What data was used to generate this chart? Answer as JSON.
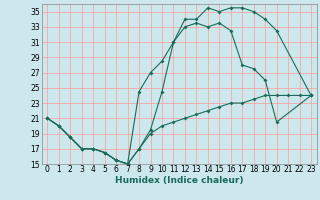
{
  "title": "",
  "xlabel": "Humidex (Indice chaleur)",
  "bg_color": "#cce8ec",
  "grid_color": "#ff9999",
  "line_color": "#1a6b5a",
  "xlim": [
    -0.5,
    23.5
  ],
  "ylim": [
    15,
    36
  ],
  "xticks": [
    0,
    1,
    2,
    3,
    4,
    5,
    6,
    7,
    8,
    9,
    10,
    11,
    12,
    13,
    14,
    15,
    16,
    17,
    18,
    19,
    20,
    21,
    22,
    23
  ],
  "yticks": [
    15,
    17,
    19,
    21,
    23,
    25,
    27,
    29,
    31,
    33,
    35
  ],
  "line1_x": [
    0,
    1,
    2,
    3,
    4,
    5,
    6,
    7,
    8,
    9,
    10,
    11,
    12,
    13,
    14,
    15,
    16,
    17,
    18,
    19,
    20,
    23
  ],
  "line1_y": [
    21,
    20,
    18.5,
    17,
    17,
    16.5,
    15.5,
    15,
    17,
    19.5,
    24.5,
    31,
    34,
    34,
    35.5,
    35,
    35.5,
    35.5,
    35,
    34,
    32.5,
    24
  ],
  "line2_x": [
    0,
    1,
    2,
    3,
    4,
    5,
    6,
    7,
    8,
    9,
    10,
    11,
    12,
    13,
    14,
    15,
    16,
    17,
    18,
    19,
    20,
    23
  ],
  "line2_y": [
    21,
    20,
    18.5,
    17,
    17,
    16.5,
    15.5,
    15,
    24.5,
    27,
    28.5,
    31,
    33,
    33.5,
    33,
    33.5,
    32.5,
    28,
    27.5,
    26,
    20.5,
    24
  ],
  "line3_x": [
    0,
    1,
    2,
    3,
    4,
    5,
    6,
    7,
    8,
    9,
    10,
    11,
    12,
    13,
    14,
    15,
    16,
    17,
    18,
    19,
    20,
    21,
    22,
    23
  ],
  "line3_y": [
    21,
    20,
    18.5,
    17,
    17,
    16.5,
    15.5,
    15,
    17,
    19,
    20,
    20.5,
    21,
    21.5,
    22,
    22.5,
    23,
    23,
    23.5,
    24,
    24,
    24,
    24,
    24
  ],
  "tick_fontsize": 5.5,
  "xlabel_fontsize": 6.5
}
